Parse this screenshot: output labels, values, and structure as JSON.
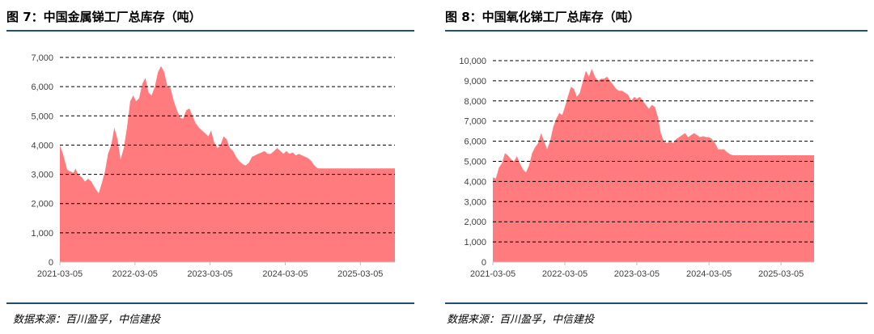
{
  "figures": [
    {
      "title": "图 7：中国金属锑工厂总库存（吨）",
      "source": "数据来源：百川盈孚，中信建投"
    },
    {
      "title": "图 8：中国氧化锑工厂总库存（吨）",
      "source": "数据来源：百川盈孚，中信建投"
    }
  ],
  "colors": {
    "area": "#ff7b7e",
    "rule": "#1f4e79",
    "grid": "#000000"
  },
  "chart_data": [
    {
      "type": "area",
      "title": "",
      "xlabel": "",
      "ylabel": "",
      "ylim": [
        0,
        7000
      ],
      "yticks": [
        0,
        1000,
        2000,
        3000,
        4000,
        5000,
        6000,
        7000
      ],
      "ytick_labels": [
        "0",
        "1,000",
        "2,000",
        "3,000",
        "4,000",
        "5,000",
        "6,000",
        "7,000"
      ],
      "xlim": [
        "2021-03-05",
        "2025-08-20"
      ],
      "xtick_labels": [
        "2021-03-05",
        "2022-03-05",
        "2023-03-05",
        "2024-03-05",
        "2025-03-05"
      ],
      "grid": "horizontal dashed",
      "series": [
        {
          "values": [
            [
              "2021-03-05",
              4000
            ],
            [
              "2021-03-20",
              3700
            ],
            [
              "2021-04-10",
              3150
            ],
            [
              "2021-04-25",
              3100
            ],
            [
              "2021-05-10",
              3050
            ],
            [
              "2021-05-20",
              3200
            ],
            [
              "2021-06-01",
              3000
            ],
            [
              "2021-06-20",
              2900
            ],
            [
              "2021-07-05",
              2750
            ],
            [
              "2021-07-20",
              2850
            ],
            [
              "2021-08-05",
              2750
            ],
            [
              "2021-08-25",
              2500
            ],
            [
              "2021-09-10",
              2350
            ],
            [
              "2021-09-25",
              2700
            ],
            [
              "2021-10-10",
              3100
            ],
            [
              "2021-10-25",
              3700
            ],
            [
              "2021-11-10",
              4000
            ],
            [
              "2021-11-25",
              4600
            ],
            [
              "2021-12-10",
              4200
            ],
            [
              "2021-12-25",
              3500
            ],
            [
              "2022-01-10",
              3900
            ],
            [
              "2022-01-25",
              4600
            ],
            [
              "2022-02-10",
              5500
            ],
            [
              "2022-02-25",
              5700
            ],
            [
              "2022-03-10",
              5500
            ],
            [
              "2022-03-25",
              5600
            ],
            [
              "2022-04-10",
              6100
            ],
            [
              "2022-04-25",
              6300
            ],
            [
              "2022-05-10",
              5800
            ],
            [
              "2022-05-25",
              5700
            ],
            [
              "2022-06-10",
              6000
            ],
            [
              "2022-06-25",
              6500
            ],
            [
              "2022-07-10",
              6700
            ],
            [
              "2022-07-25",
              6500
            ],
            [
              "2022-08-10",
              6000
            ],
            [
              "2022-08-25",
              5950
            ],
            [
              "2022-09-10",
              5500
            ],
            [
              "2022-09-25",
              5200
            ],
            [
              "2022-10-10",
              4950
            ],
            [
              "2022-10-25",
              4900
            ],
            [
              "2022-11-10",
              5200
            ],
            [
              "2022-11-25",
              5250
            ],
            [
              "2022-12-10",
              5000
            ],
            [
              "2022-12-25",
              4750
            ],
            [
              "2023-01-10",
              4600
            ],
            [
              "2023-01-25",
              4500
            ],
            [
              "2023-02-10",
              4400
            ],
            [
              "2023-02-25",
              4300
            ],
            [
              "2023-03-10",
              4500
            ],
            [
              "2023-03-25",
              4100
            ],
            [
              "2023-04-10",
              3900
            ],
            [
              "2023-04-25",
              4000
            ],
            [
              "2023-05-10",
              4300
            ],
            [
              "2023-05-25",
              4200
            ],
            [
              "2023-06-10",
              3900
            ],
            [
              "2023-06-25",
              3800
            ],
            [
              "2023-07-10",
              3600
            ],
            [
              "2023-07-25",
              3450
            ],
            [
              "2023-08-10",
              3350
            ],
            [
              "2023-08-25",
              3300
            ],
            [
              "2023-09-10",
              3400
            ],
            [
              "2023-09-25",
              3600
            ],
            [
              "2023-10-10",
              3650
            ],
            [
              "2023-10-25",
              3700
            ],
            [
              "2023-11-10",
              3750
            ],
            [
              "2023-11-25",
              3800
            ],
            [
              "2023-12-10",
              3700
            ],
            [
              "2023-12-25",
              3700
            ],
            [
              "2024-01-10",
              3800
            ],
            [
              "2024-01-25",
              3900
            ],
            [
              "2024-02-10",
              3800
            ],
            [
              "2024-02-25",
              3700
            ],
            [
              "2024-03-10",
              3800
            ],
            [
              "2024-03-25",
              3700
            ],
            [
              "2024-04-10",
              3750
            ],
            [
              "2024-04-25",
              3650
            ],
            [
              "2024-05-10",
              3700
            ],
            [
              "2024-05-25",
              3650
            ],
            [
              "2024-06-10",
              3600
            ],
            [
              "2024-06-25",
              3550
            ],
            [
              "2024-07-10",
              3450
            ],
            [
              "2024-07-25",
              3300
            ],
            [
              "2024-08-10",
              3200
            ],
            [
              "2024-08-25",
              3200
            ],
            [
              "2024-09-10",
              3200
            ],
            [
              "2024-09-25",
              3200
            ],
            [
              "2024-10-10",
              3200
            ],
            [
              "2024-10-25",
              3200
            ],
            [
              "2024-11-10",
              3200
            ],
            [
              "2024-11-25",
              3200
            ],
            [
              "2024-12-10",
              3200
            ],
            [
              "2024-12-25",
              3200
            ],
            [
              "2025-01-10",
              3200
            ],
            [
              "2025-01-25",
              3200
            ],
            [
              "2025-02-10",
              3200
            ],
            [
              "2025-02-25",
              3200
            ],
            [
              "2025-03-10",
              3200
            ],
            [
              "2025-03-25",
              3200
            ],
            [
              "2025-04-10",
              3200
            ],
            [
              "2025-04-25",
              3200
            ],
            [
              "2025-05-10",
              3200
            ],
            [
              "2025-05-25",
              3200
            ],
            [
              "2025-06-10",
              3200
            ],
            [
              "2025-06-25",
              3200
            ],
            [
              "2025-07-10",
              3200
            ],
            [
              "2025-07-25",
              3200
            ],
            [
              "2025-08-10",
              3200
            ],
            [
              "2025-08-20",
              3200
            ]
          ]
        }
      ]
    },
    {
      "type": "area",
      "title": "",
      "xlabel": "",
      "ylabel": "",
      "ylim": [
        0,
        10000
      ],
      "yticks": [
        0,
        1000,
        2000,
        3000,
        4000,
        5000,
        6000,
        7000,
        8000,
        9000,
        10000
      ],
      "ytick_labels": [
        "0",
        "1,000",
        "2,000",
        "3,000",
        "4,000",
        "5,000",
        "6,000",
        "7,000",
        "8,000",
        "9,000",
        "10,000"
      ],
      "xlim": [
        "2021-03-05",
        "2025-08-20"
      ],
      "xtick_labels": [
        "2021-03-05",
        "2022-03-05",
        "2023-03-05",
        "2024-03-05",
        "2025-03-05"
      ],
      "grid": "horizontal dashed",
      "series": [
        {
          "values": [
            [
              "2021-03-05",
              4200
            ],
            [
              "2021-03-20",
              4150
            ],
            [
              "2021-04-05",
              4700
            ],
            [
              "2021-04-20",
              4900
            ],
            [
              "2021-05-05",
              5400
            ],
            [
              "2021-05-20",
              5300
            ],
            [
              "2021-06-05",
              5100
            ],
            [
              "2021-06-20",
              5000
            ],
            [
              "2021-07-05",
              5250
            ],
            [
              "2021-07-20",
              4900
            ],
            [
              "2021-08-05",
              4600
            ],
            [
              "2021-08-20",
              4450
            ],
            [
              "2021-09-05",
              4800
            ],
            [
              "2021-09-20",
              5400
            ],
            [
              "2021-10-05",
              5700
            ],
            [
              "2021-10-20",
              5900
            ],
            [
              "2021-11-05",
              6400
            ],
            [
              "2021-11-20",
              6000
            ],
            [
              "2021-12-05",
              5600
            ],
            [
              "2021-12-20",
              6000
            ],
            [
              "2022-01-05",
              6700
            ],
            [
              "2022-01-20",
              7100
            ],
            [
              "2022-02-05",
              7400
            ],
            [
              "2022-02-20",
              7300
            ],
            [
              "2022-03-05",
              7700
            ],
            [
              "2022-03-20",
              8200
            ],
            [
              "2022-04-05",
              8700
            ],
            [
              "2022-04-20",
              8600
            ],
            [
              "2022-05-05",
              8200
            ],
            [
              "2022-05-20",
              8400
            ],
            [
              "2022-06-05",
              9000
            ],
            [
              "2022-06-20",
              9500
            ],
            [
              "2022-07-05",
              9200
            ],
            [
              "2022-07-20",
              9600
            ],
            [
              "2022-08-05",
              9200
            ],
            [
              "2022-08-20",
              9000
            ],
            [
              "2022-09-05",
              9100
            ],
            [
              "2022-09-20",
              9100
            ],
            [
              "2022-10-05",
              9200
            ],
            [
              "2022-10-20",
              9000
            ],
            [
              "2022-11-05",
              8800
            ],
            [
              "2022-11-20",
              8600
            ],
            [
              "2022-12-05",
              8500
            ],
            [
              "2022-12-20",
              8500
            ],
            [
              "2023-01-05",
              8400
            ],
            [
              "2023-01-20",
              8300
            ],
            [
              "2023-02-05",
              8000
            ],
            [
              "2023-02-20",
              8200
            ],
            [
              "2023-03-05",
              8100
            ],
            [
              "2023-03-20",
              8200
            ],
            [
              "2023-04-05",
              8000
            ],
            [
              "2023-04-20",
              7800
            ],
            [
              "2023-05-05",
              7600
            ],
            [
              "2023-05-20",
              7800
            ],
            [
              "2023-06-05",
              7700
            ],
            [
              "2023-06-20",
              7200
            ],
            [
              "2023-07-05",
              6400
            ],
            [
              "2023-07-20",
              6000
            ],
            [
              "2023-08-05",
              5900
            ],
            [
              "2023-08-20",
              6000
            ],
            [
              "2023-09-05",
              5900
            ],
            [
              "2023-09-20",
              6100
            ],
            [
              "2023-10-05",
              6200
            ],
            [
              "2023-10-20",
              6300
            ],
            [
              "2023-11-05",
              6400
            ],
            [
              "2023-11-20",
              6200
            ],
            [
              "2023-12-05",
              6300
            ],
            [
              "2023-12-20",
              6400
            ],
            [
              "2024-01-05",
              6300
            ],
            [
              "2024-01-20",
              6200
            ],
            [
              "2024-02-05",
              6250
            ],
            [
              "2024-02-20",
              6200
            ],
            [
              "2024-03-05",
              6200
            ],
            [
              "2024-03-20",
              6100
            ],
            [
              "2024-04-05",
              5900
            ],
            [
              "2024-04-20",
              5600
            ],
            [
              "2024-05-05",
              5600
            ],
            [
              "2024-05-20",
              5600
            ],
            [
              "2024-06-05",
              5450
            ],
            [
              "2024-06-20",
              5350
            ],
            [
              "2024-07-05",
              5300
            ],
            [
              "2024-07-20",
              5300
            ],
            [
              "2024-08-05",
              5300
            ],
            [
              "2024-08-20",
              5300
            ],
            [
              "2024-09-05",
              5300
            ],
            [
              "2024-09-20",
              5300
            ],
            [
              "2024-10-05",
              5300
            ],
            [
              "2024-10-20",
              5300
            ],
            [
              "2024-11-05",
              5300
            ],
            [
              "2024-11-20",
              5300
            ],
            [
              "2024-12-05",
              5300
            ],
            [
              "2024-12-20",
              5300
            ],
            [
              "2025-01-05",
              5300
            ],
            [
              "2025-01-20",
              5300
            ],
            [
              "2025-02-05",
              5300
            ],
            [
              "2025-02-20",
              5300
            ],
            [
              "2025-03-05",
              5300
            ],
            [
              "2025-03-20",
              5300
            ],
            [
              "2025-04-05",
              5300
            ],
            [
              "2025-04-20",
              5300
            ],
            [
              "2025-05-05",
              5300
            ],
            [
              "2025-05-20",
              5300
            ],
            [
              "2025-06-05",
              5300
            ],
            [
              "2025-06-20",
              5300
            ],
            [
              "2025-07-05",
              5300
            ],
            [
              "2025-07-20",
              5300
            ],
            [
              "2025-08-05",
              5300
            ],
            [
              "2025-08-20",
              5300
            ]
          ]
        }
      ]
    }
  ]
}
